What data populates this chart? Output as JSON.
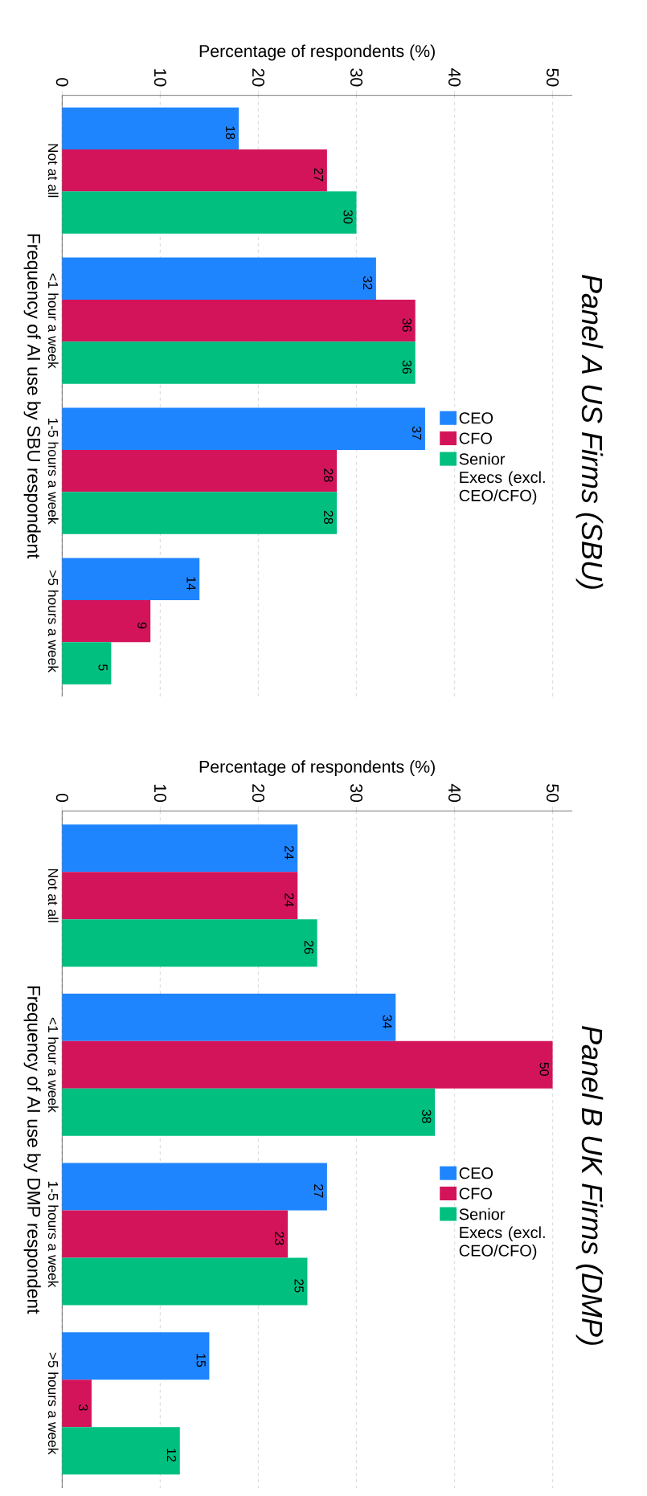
{
  "chart_data": [
    {
      "type": "bar",
      "orientation": "horizontal",
      "title": "Panel A US Firms (SBU)",
      "xlabel": "Percentage of respondents (%)",
      "ylabel": "Frequency of AI use by SBU respondent",
      "categories": [
        "Not at all",
        "<1 hour a week",
        "1-5 hours a week",
        ">5 hours a week"
      ],
      "series": [
        {
          "name": "CEO",
          "color": "#1f85ff",
          "values": [
            18,
            32,
            37,
            14
          ]
        },
        {
          "name": "CFO",
          "color": "#d4145a",
          "values": [
            27,
            36,
            28,
            9
          ]
        },
        {
          "name": "Senior Execs (excl. CEO/CFO)",
          "color": "#00bf7f",
          "values": [
            30,
            36,
            28,
            5
          ]
        }
      ],
      "xlim": [
        0,
        52
      ],
      "xticks": [
        0,
        10,
        20,
        30,
        40,
        50
      ],
      "grid": "x",
      "legend": "right",
      "data_labels": true
    },
    {
      "type": "bar",
      "orientation": "horizontal",
      "title": "Panel B UK Firms (DMP)",
      "xlabel": "Percentage of respondents (%)",
      "ylabel": "Frequency of AI use by DMP respondent",
      "categories": [
        "Not at all",
        "<1 hour a week",
        "1-5 hours a week",
        ">5 hours a week"
      ],
      "series": [
        {
          "name": "CEO",
          "color": "#1f85ff",
          "values": [
            24,
            34,
            27,
            15
          ]
        },
        {
          "name": "CFO",
          "color": "#d4145a",
          "values": [
            24,
            50,
            23,
            3
          ]
        },
        {
          "name": "Senior Execs (excl. CEO/CFO)",
          "color": "#00bf7f",
          "values": [
            26,
            38,
            25,
            12
          ]
        }
      ],
      "xlim": [
        0,
        52
      ],
      "xticks": [
        0,
        10,
        20,
        30,
        40,
        50
      ],
      "grid": "x",
      "legend": "right",
      "data_labels": true
    }
  ]
}
